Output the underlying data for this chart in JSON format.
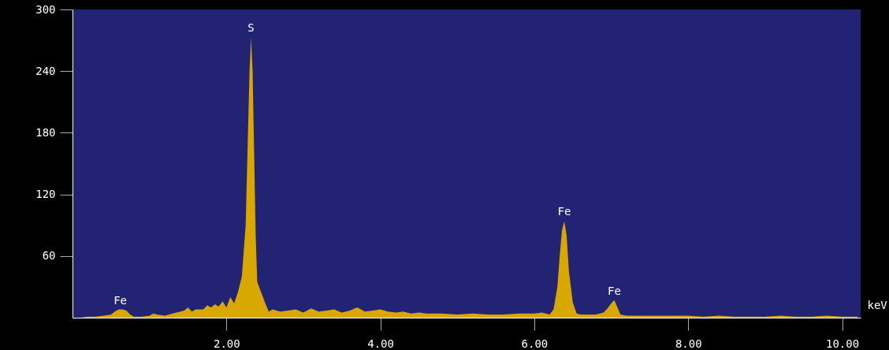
{
  "chart_data": {
    "type": "area",
    "xlabel": "keV",
    "xlim": [
      0,
      10.24
    ],
    "ylim": [
      0,
      300
    ],
    "xticks": [
      {
        "value": 2,
        "label": "2.00"
      },
      {
        "value": 4,
        "label": "4.00"
      },
      {
        "value": 6,
        "label": "6.00"
      },
      {
        "value": 8,
        "label": "8.00"
      },
      {
        "value": 10,
        "label": "10.00"
      }
    ],
    "yticks": [
      60,
      120,
      180,
      240,
      300
    ],
    "grid": false,
    "x": [
      0.1,
      0.2,
      0.3,
      0.4,
      0.5,
      0.55,
      0.6,
      0.65,
      0.7,
      0.75,
      0.8,
      0.9,
      1.0,
      1.05,
      1.1,
      1.2,
      1.3,
      1.4,
      1.45,
      1.5,
      1.55,
      1.6,
      1.7,
      1.75,
      1.8,
      1.85,
      1.9,
      1.95,
      2.0,
      2.05,
      2.1,
      2.15,
      2.2,
      2.25,
      2.28,
      2.3,
      2.32,
      2.34,
      2.36,
      2.38,
      2.4,
      2.45,
      2.5,
      2.55,
      2.6,
      2.7,
      2.8,
      2.9,
      3.0,
      3.1,
      3.2,
      3.3,
      3.4,
      3.5,
      3.6,
      3.7,
      3.8,
      3.9,
      4.0,
      4.1,
      4.2,
      4.3,
      4.4,
      4.5,
      4.6,
      4.8,
      5.0,
      5.2,
      5.4,
      5.6,
      5.8,
      6.0,
      6.1,
      6.2,
      6.25,
      6.3,
      6.33,
      6.36,
      6.39,
      6.42,
      6.45,
      6.5,
      6.55,
      6.6,
      6.7,
      6.8,
      6.9,
      6.95,
      7.0,
      7.04,
      7.08,
      7.12,
      7.2,
      7.4,
      7.6,
      7.8,
      8.0,
      8.2,
      8.4,
      8.6,
      8.8,
      9.0,
      9.2,
      9.4,
      9.6,
      9.8,
      10.0,
      10.2
    ],
    "series": [
      {
        "color": "#d8a800",
        "values": [
          0,
          1,
          1,
          2,
          3,
          6,
          8,
          8,
          7,
          3,
          1,
          1,
          2,
          4,
          3,
          2,
          4,
          6,
          7,
          10,
          6,
          8,
          8,
          12,
          10,
          13,
          11,
          16,
          10,
          20,
          14,
          25,
          40,
          90,
          180,
          240,
          273,
          240,
          160,
          80,
          35,
          25,
          15,
          6,
          8,
          6,
          7,
          8,
          5,
          9,
          6,
          7,
          8,
          5,
          7,
          10,
          6,
          7,
          8,
          6,
          5,
          6,
          4,
          5,
          4,
          4,
          3,
          4,
          3,
          3,
          4,
          4,
          5,
          3,
          8,
          30,
          60,
          85,
          94,
          80,
          45,
          15,
          4,
          3,
          3,
          3,
          5,
          9,
          14,
          17,
          10,
          3,
          2,
          2,
          2,
          2,
          2,
          1,
          2,
          1,
          1,
          1,
          2,
          1,
          1,
          2,
          1,
          1
        ]
      }
    ],
    "annotations": [
      {
        "text": "Fe",
        "x": 0.62,
        "y": 8
      },
      {
        "text": "S",
        "x": 2.32,
        "y": 273
      },
      {
        "text": "Fe",
        "x": 6.39,
        "y": 94
      },
      {
        "text": "Fe",
        "x": 7.04,
        "y": 17
      }
    ]
  }
}
